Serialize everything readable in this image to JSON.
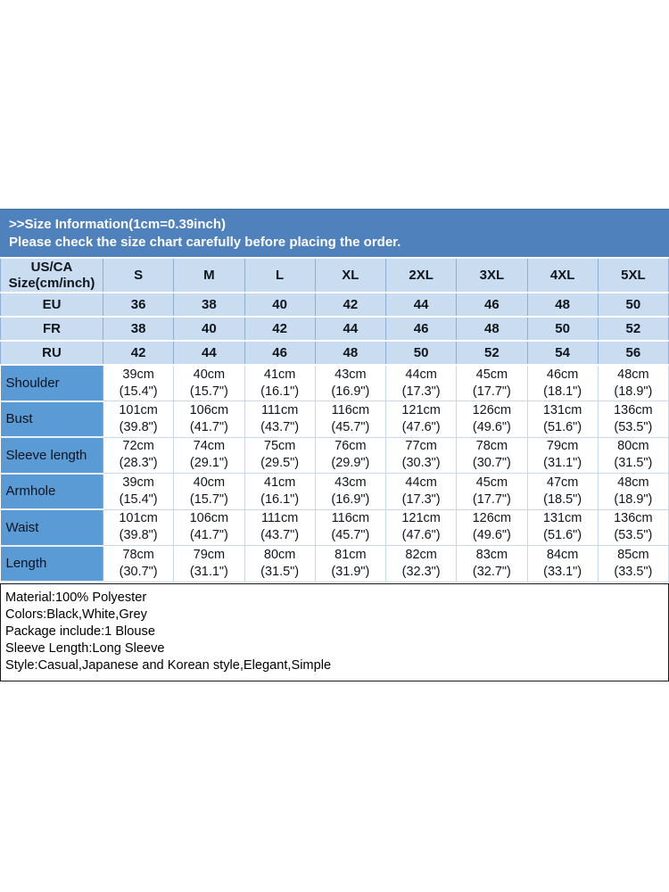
{
  "banner": {
    "line1": ">>Size Information(1cm=0.39inch)",
    "line2": "Please check the size chart carefully before placing the order."
  },
  "table": {
    "header": {
      "label_line1": "US/CA",
      "label_line2": "Size(cm/inch)",
      "sizes": [
        "S",
        "M",
        "L",
        "XL",
        "2XL",
        "3XL",
        "4XL",
        "5XL"
      ]
    },
    "region_rows": [
      {
        "label": "EU",
        "values": [
          "36",
          "38",
          "40",
          "42",
          "44",
          "46",
          "48",
          "50"
        ]
      },
      {
        "label": "FR",
        "values": [
          "38",
          "40",
          "42",
          "44",
          "46",
          "48",
          "50",
          "52"
        ]
      },
      {
        "label": "RU",
        "values": [
          "42",
          "44",
          "46",
          "48",
          "50",
          "52",
          "54",
          "56"
        ]
      }
    ],
    "measure_rows": [
      {
        "label": "Shoulder",
        "values": [
          {
            "cm": "39cm",
            "inch": "(15.4\")"
          },
          {
            "cm": "40cm",
            "inch": "(15.7\")"
          },
          {
            "cm": "41cm",
            "inch": "(16.1\")"
          },
          {
            "cm": "43cm",
            "inch": "(16.9\")"
          },
          {
            "cm": "44cm",
            "inch": "(17.3\")"
          },
          {
            "cm": "45cm",
            "inch": "(17.7\")"
          },
          {
            "cm": "46cm",
            "inch": "(18.1\")"
          },
          {
            "cm": "48cm",
            "inch": "(18.9\")"
          }
        ]
      },
      {
        "label": "Bust",
        "values": [
          {
            "cm": "101cm",
            "inch": "(39.8\")"
          },
          {
            "cm": "106cm",
            "inch": "(41.7\")"
          },
          {
            "cm": "111cm",
            "inch": "(43.7\")"
          },
          {
            "cm": "116cm",
            "inch": "(45.7\")"
          },
          {
            "cm": "121cm",
            "inch": "(47.6\")"
          },
          {
            "cm": "126cm",
            "inch": "(49.6\")"
          },
          {
            "cm": "131cm",
            "inch": "(51.6\")"
          },
          {
            "cm": "136cm",
            "inch": "(53.5\")"
          }
        ]
      },
      {
        "label": "Sleeve length",
        "values": [
          {
            "cm": "72cm",
            "inch": "(28.3\")"
          },
          {
            "cm": "74cm",
            "inch": "(29.1\")"
          },
          {
            "cm": "75cm",
            "inch": "(29.5\")"
          },
          {
            "cm": "76cm",
            "inch": "(29.9\")"
          },
          {
            "cm": "77cm",
            "inch": "(30.3\")"
          },
          {
            "cm": "78cm",
            "inch": "(30.7\")"
          },
          {
            "cm": "79cm",
            "inch": "(31.1\")"
          },
          {
            "cm": "80cm",
            "inch": "(31.5\")"
          }
        ]
      },
      {
        "label": "Armhole",
        "values": [
          {
            "cm": "39cm",
            "inch": "(15.4\")"
          },
          {
            "cm": "40cm",
            "inch": "(15.7\")"
          },
          {
            "cm": "41cm",
            "inch": "(16.1\")"
          },
          {
            "cm": "43cm",
            "inch": "(16.9\")"
          },
          {
            "cm": "44cm",
            "inch": "(17.3\")"
          },
          {
            "cm": "45cm",
            "inch": "(17.7\")"
          },
          {
            "cm": "47cm",
            "inch": "(18.5\")"
          },
          {
            "cm": "48cm",
            "inch": "(18.9\")"
          }
        ]
      },
      {
        "label": "Waist",
        "values": [
          {
            "cm": "101cm",
            "inch": "(39.8\")"
          },
          {
            "cm": "106cm",
            "inch": "(41.7\")"
          },
          {
            "cm": "111cm",
            "inch": "(43.7\")"
          },
          {
            "cm": "116cm",
            "inch": "(45.7\")"
          },
          {
            "cm": "121cm",
            "inch": "(47.6\")"
          },
          {
            "cm": "126cm",
            "inch": "(49.6\")"
          },
          {
            "cm": "131cm",
            "inch": "(51.6\")"
          },
          {
            "cm": "136cm",
            "inch": "(53.5\")"
          }
        ]
      },
      {
        "label": "Length",
        "values": [
          {
            "cm": "78cm",
            "inch": "(30.7\")"
          },
          {
            "cm": "79cm",
            "inch": "(31.1\")"
          },
          {
            "cm": "80cm",
            "inch": "(31.5\")"
          },
          {
            "cm": "81cm",
            "inch": "(31.9\")"
          },
          {
            "cm": "82cm",
            "inch": "(32.3\")"
          },
          {
            "cm": "83cm",
            "inch": "(32.7\")"
          },
          {
            "cm": "84cm",
            "inch": "(33.1\")"
          },
          {
            "cm": "85cm",
            "inch": "(33.5\")"
          }
        ]
      }
    ]
  },
  "details": {
    "lines": [
      "Material:100% Polyester",
      "Colors:Black,White,Grey",
      "Package include:1 Blouse",
      "Sleeve Length:Long Sleeve",
      "Style:Casual,Japanese and Korean style,Elegant,Simple"
    ]
  },
  "colors": {
    "banner_bg": "#4f81bd",
    "header_row_bg": "#c9dcf0",
    "measure_label_bg": "#5b9bd5",
    "banner_text": "#ffffff",
    "table_text": "#10151c",
    "details_border": "#181818"
  }
}
